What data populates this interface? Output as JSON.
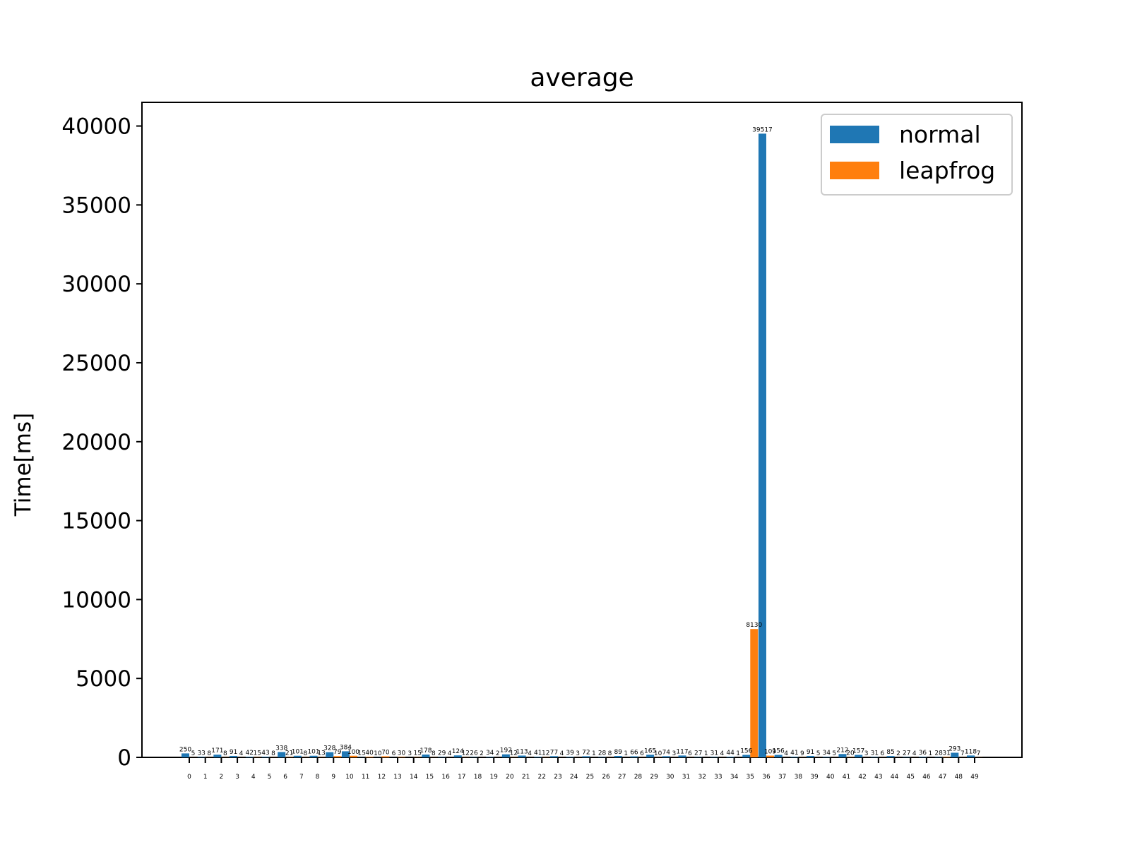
{
  "chart_data": {
    "type": "bar",
    "title": "average",
    "xlabel": "",
    "ylabel": "Time[ms]",
    "ylim": [
      0,
      41500
    ],
    "yticks": [
      0,
      5000,
      10000,
      15000,
      20000,
      25000,
      30000,
      35000,
      40000
    ],
    "categories": [
      "0",
      "1",
      "2",
      "3",
      "4",
      "5",
      "6",
      "7",
      "8",
      "9",
      "10",
      "11",
      "12",
      "13",
      "14",
      "15",
      "16",
      "17",
      "18",
      "19",
      "20",
      "21",
      "22",
      "23",
      "24",
      "25",
      "26",
      "27",
      "28",
      "29",
      "30",
      "31",
      "32",
      "33",
      "34",
      "35",
      "36",
      "37",
      "38",
      "39",
      "40",
      "41",
      "42",
      "43",
      "44",
      "45",
      "46",
      "47",
      "48",
      "49"
    ],
    "series": [
      {
        "name": "normal",
        "color": "#1f77b4",
        "values": [
          250,
          33,
          171,
          91,
          42,
          43,
          338,
          101,
          101,
          328,
          384,
          15,
          10,
          6,
          3,
          178,
          29,
          124,
          26,
          34,
          192,
          113,
          41,
          77,
          39,
          72,
          28,
          89,
          66,
          165,
          74,
          117,
          27,
          31,
          44,
          156,
          39517,
          156,
          41,
          91,
          34,
          212,
          157,
          31,
          85,
          27,
          36,
          28,
          293,
          118
        ]
      },
      {
        "name": "leapfrog",
        "color": "#ff7f0e",
        "values": [
          5,
          8,
          8,
          4,
          15,
          8,
          21,
          8,
          13,
          79,
          100,
          40,
          70,
          30,
          15,
          8,
          4,
          12,
          2,
          2,
          12,
          4,
          12,
          4,
          3,
          1,
          8,
          1,
          6,
          10,
          3,
          6,
          1,
          4,
          1,
          8130,
          109,
          4,
          9,
          5,
          5,
          20,
          3,
          6,
          2,
          4,
          1,
          31,
          7,
          7
        ]
      }
    ],
    "legend": "top-right",
    "grid": false
  }
}
